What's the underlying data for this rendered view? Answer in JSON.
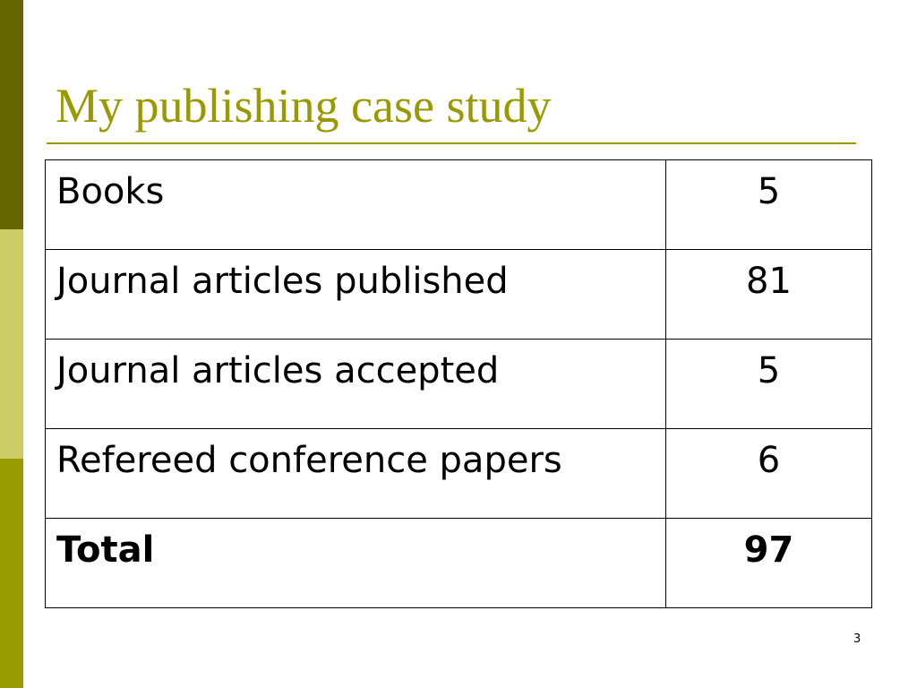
{
  "title": "My publishing case study",
  "table": {
    "rows": [
      [
        "Books",
        "5"
      ],
      [
        "Journal articles published",
        "81"
      ],
      [
        "Journal articles accepted",
        "5"
      ],
      [
        "Refereed conference papers",
        "6"
      ],
      [
        "Total",
        "97"
      ]
    ]
  },
  "page_number": "3"
}
